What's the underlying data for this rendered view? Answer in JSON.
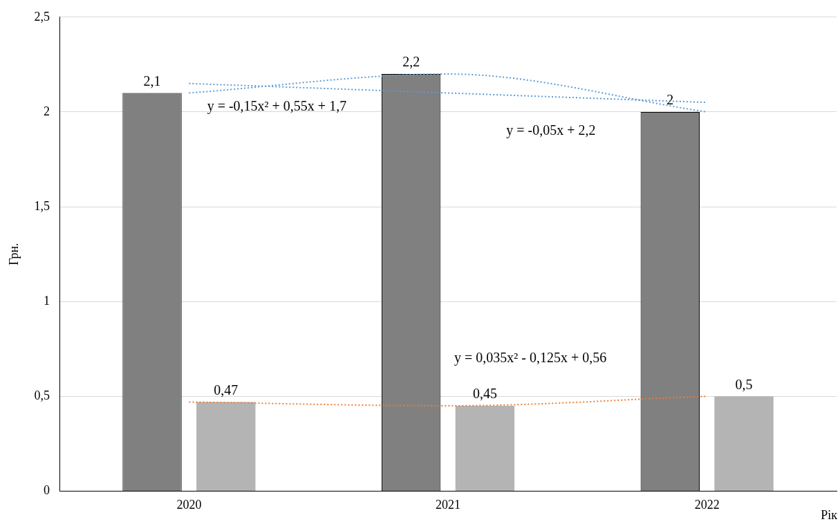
{
  "chart_data": {
    "type": "bar",
    "ylabel": "Грн.",
    "xlabel": "Рік",
    "categories": [
      "2020",
      "2021",
      "2022"
    ],
    "series": [
      {
        "color": "#808080",
        "values": [
          2.1,
          2.2,
          2.0
        ],
        "value_labels": [
          "2,1",
          "2,2",
          "2"
        ]
      },
      {
        "color": "#b4b4b4",
        "values": [
          0.47,
          0.45,
          0.5
        ],
        "value_labels": [
          "0,47",
          "0,45",
          "0,5"
        ]
      },
      {
        "type": "line",
        "color": "#5b9bd5",
        "values": [
          2.1,
          2.2,
          2.0
        ],
        "line_style": "dotted",
        "marker": "none"
      },
      {
        "type": "line",
        "color": "#5b9bd5",
        "values": [
          2.15,
          2.1,
          2.05
        ],
        "line_style": "dotted",
        "marker": "none"
      },
      {
        "type": "line",
        "color": "#ed7d31",
        "values": [
          0.47,
          0.45,
          0.5
        ],
        "line_style": "dotted",
        "marker": "none"
      }
    ],
    "ylim": [
      0,
      2.5
    ],
    "yticks": [
      0,
      {
        "value": 0.5,
        "label": "0,5"
      },
      1,
      {
        "value": 1.5,
        "label": "1,5"
      },
      2,
      {
        "value": 2.5,
        "label": "2,5"
      }
    ],
    "grid": "y",
    "legend": false,
    "annotations": [
      "y = -0,15x² + 0,55x + 1,7",
      "y = -0,05x + 2,2",
      "y = 0,035x² - 0,125x + 0,56"
    ]
  }
}
